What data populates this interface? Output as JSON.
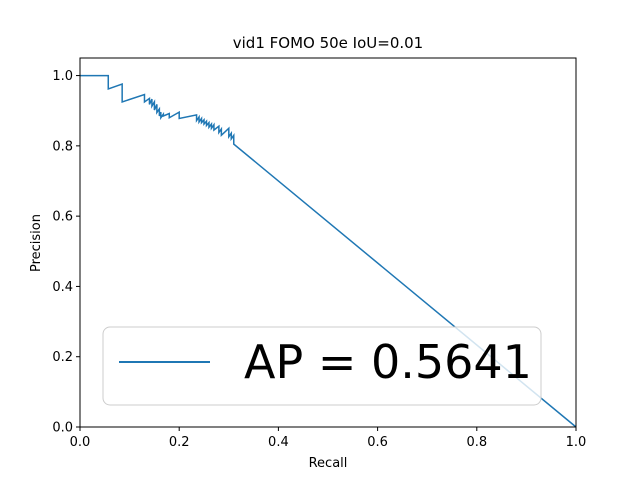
{
  "chart_data": {
    "type": "line",
    "title": "vid1 FOMO 50e IoU=0.01",
    "xlabel": "Recall",
    "ylabel": "Precision",
    "xlim": [
      0.0,
      1.0
    ],
    "ylim": [
      0.0,
      1.05
    ],
    "xticks": [
      "0.0",
      "0.2",
      "0.4",
      "0.6",
      "0.8",
      "1.0"
    ],
    "yticks": [
      "0.0",
      "0.2",
      "0.4",
      "0.6",
      "0.8",
      "1.0"
    ],
    "grid": false,
    "legend_position": "lower center",
    "series": [
      {
        "name": "AP = 0.5641",
        "color": "#1f77b4",
        "x": [
          0.0,
          0.057,
          0.057,
          0.085,
          0.085,
          0.13,
          0.13,
          0.14,
          0.14,
          0.145,
          0.145,
          0.15,
          0.15,
          0.155,
          0.155,
          0.16,
          0.16,
          0.163,
          0.163,
          0.168,
          0.168,
          0.18,
          0.18,
          0.2,
          0.2,
          0.235,
          0.235,
          0.24,
          0.24,
          0.245,
          0.245,
          0.25,
          0.25,
          0.255,
          0.255,
          0.26,
          0.26,
          0.265,
          0.265,
          0.27,
          0.27,
          0.28,
          0.28,
          0.285,
          0.285,
          0.3,
          0.3,
          0.305,
          0.305,
          0.31,
          0.31,
          1.0
        ],
        "y": [
          1.0,
          1.0,
          0.962,
          0.976,
          0.925,
          0.946,
          0.925,
          0.935,
          0.918,
          0.933,
          0.913,
          0.925,
          0.902,
          0.918,
          0.895,
          0.905,
          0.885,
          0.896,
          0.88,
          0.89,
          0.885,
          0.892,
          0.88,
          0.896,
          0.878,
          0.888,
          0.872,
          0.882,
          0.868,
          0.878,
          0.866,
          0.874,
          0.862,
          0.87,
          0.858,
          0.866,
          0.853,
          0.862,
          0.85,
          0.86,
          0.845,
          0.856,
          0.838,
          0.848,
          0.83,
          0.85,
          0.826,
          0.836,
          0.82,
          0.83,
          0.805,
          0.0
        ]
      }
    ],
    "ap_value": 0.5641
  }
}
